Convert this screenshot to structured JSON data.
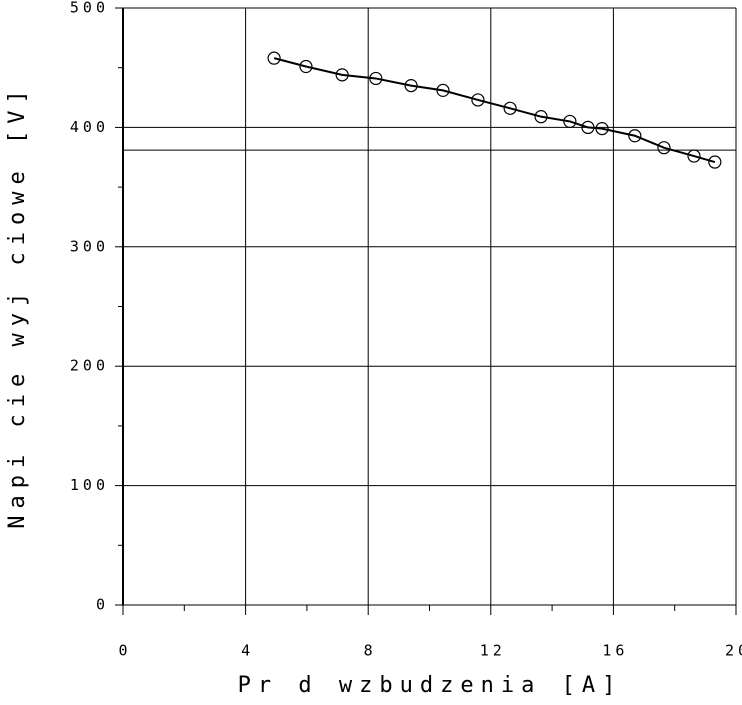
{
  "chart_data": {
    "type": "line",
    "x_label": "Pr d wzbudzenia [A]",
    "y_label": "Napi cie wyj ciowe [V]",
    "x": [
      4.93,
      5.97,
      7.15,
      8.25,
      9.4,
      10.44,
      11.58,
      12.63,
      13.64,
      14.58,
      15.17,
      15.63,
      16.7,
      17.65,
      18.63,
      19.31
    ],
    "series": [
      {
        "color": "#000000",
        "marker": "circle",
        "values": [
          458,
          451,
          444,
          441,
          435,
          431,
          423,
          416,
          409,
          405,
          400,
          399,
          393,
          383,
          376,
          371
        ]
      }
    ],
    "xlim": [
      0,
      20
    ],
    "xticks": [
      0,
      4,
      8,
      12,
      16,
      20
    ],
    "xminorticks": [
      2,
      6,
      10,
      14,
      18
    ],
    "ylim": [
      0,
      500
    ],
    "yticks": [
      0,
      100,
      200,
      300,
      400,
      500
    ],
    "yminorticks": [
      50,
      150,
      250,
      350,
      450
    ],
    "reference_lines": [
      381
    ],
    "grid": true
  }
}
